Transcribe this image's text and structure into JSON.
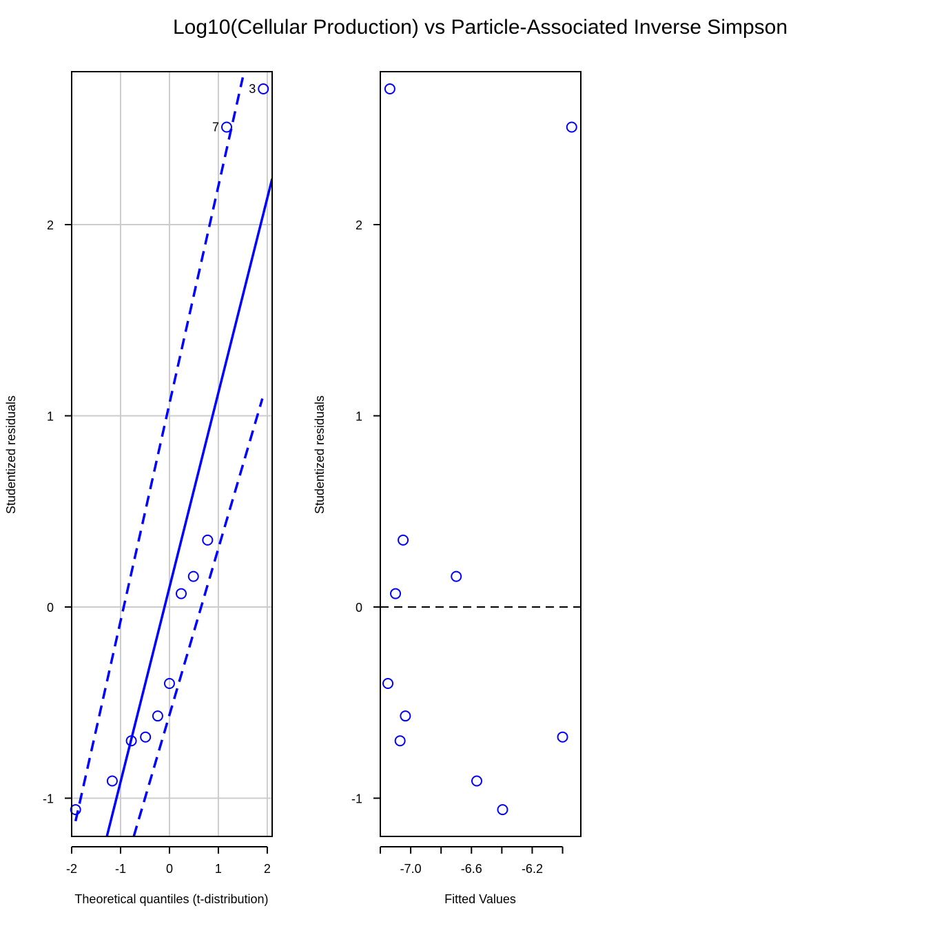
{
  "title": "Log10(Cellular Production) vs Particle-Associated Inverse Simpson",
  "colors": {
    "series": "#0000ff",
    "grid": "#cccccc",
    "axis": "#000000",
    "refline": "#000000"
  },
  "chart_data": [
    {
      "type": "scatter",
      "subtype": "qq-plot",
      "xlabel": "Theoretical quantiles (t-distribution)",
      "ylabel": "Studentized residuals",
      "xlim": [
        -2.0,
        2.1
      ],
      "ylim": [
        -1.2,
        2.8
      ],
      "xticks": [
        -2,
        -1,
        0,
        1,
        2
      ],
      "yticks": [
        -1,
        0,
        1,
        2
      ],
      "grid": true,
      "points": [
        {
          "x": -1.92,
          "y": -1.06
        },
        {
          "x": -1.17,
          "y": -0.91
        },
        {
          "x": -0.78,
          "y": -0.7
        },
        {
          "x": -0.49,
          "y": -0.68
        },
        {
          "x": -0.24,
          "y": -0.57
        },
        {
          "x": 0.0,
          "y": -0.4
        },
        {
          "x": 0.24,
          "y": 0.07
        },
        {
          "x": 0.49,
          "y": 0.16
        },
        {
          "x": 0.78,
          "y": 0.35
        },
        {
          "x": 1.17,
          "y": 2.51,
          "label": "7"
        },
        {
          "x": 1.92,
          "y": 2.71,
          "label": "3"
        }
      ],
      "fit_line": [
        {
          "x": -1.28,
          "y": -1.2
        },
        {
          "x": 2.1,
          "y": 2.24
        }
      ],
      "envelope_upper": [
        {
          "x": -1.92,
          "y": -1.12
        },
        {
          "x": 1.5,
          "y": 2.77
        }
      ],
      "envelope_lower": [
        {
          "x": -0.73,
          "y": -1.2
        },
        {
          "x": 1.9,
          "y": 1.09
        }
      ]
    },
    {
      "type": "scatter",
      "subtype": "residuals-vs-fitted",
      "xlabel": "Fitted Values",
      "ylabel": "Studentized residuals",
      "xlim": [
        -7.2,
        -5.88
      ],
      "ylim": [
        -1.2,
        2.8
      ],
      "xticks": [
        -7.2,
        -7.0,
        -6.8,
        -6.6,
        -6.4,
        -6.2,
        -6.0
      ],
      "xtick_labels": [
        "",
        "-7.0",
        "",
        "-6.6",
        "",
        "-6.2",
        ""
      ],
      "yticks": [
        -1,
        0,
        1,
        2
      ],
      "grid": false,
      "hline": 0,
      "points": [
        {
          "x": -7.137,
          "y": 2.71
        },
        {
          "x": -5.94,
          "y": 2.51
        },
        {
          "x": -7.05,
          "y": 0.35
        },
        {
          "x": -7.1,
          "y": 0.07
        },
        {
          "x": -6.7,
          "y": 0.16
        },
        {
          "x": -7.15,
          "y": -0.4
        },
        {
          "x": -7.035,
          "y": -0.57
        },
        {
          "x": -7.07,
          "y": -0.7
        },
        {
          "x": -6.0,
          "y": -0.68
        },
        {
          "x": -6.565,
          "y": -0.91
        },
        {
          "x": -6.395,
          "y": -1.06
        }
      ]
    }
  ]
}
